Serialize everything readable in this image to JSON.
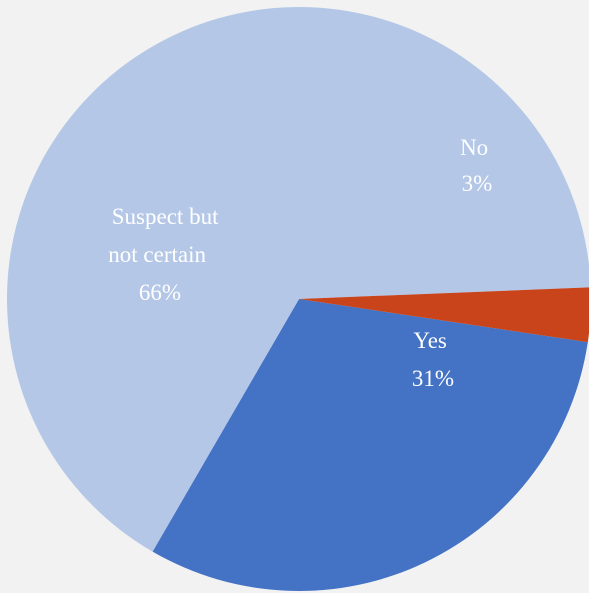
{
  "chart_data": {
    "type": "pie",
    "slices": [
      {
        "label": "Yes",
        "value": 31,
        "display": "31%",
        "color": "#4472c4"
      },
      {
        "label": "Suspect but not certain",
        "value": 66,
        "display": "66%",
        "color": "#b4c7e7"
      },
      {
        "label": "No",
        "value": 3,
        "display": "3%",
        "color": "#c9441a"
      }
    ],
    "labels": {
      "yes": {
        "line1": "Yes",
        "pct": "31%"
      },
      "suspect": {
        "line1": "Suspect but",
        "line2": "not certain",
        "pct": "66%"
      },
      "no": {
        "line1": "No",
        "pct": "3%"
      }
    },
    "legend": "none"
  }
}
